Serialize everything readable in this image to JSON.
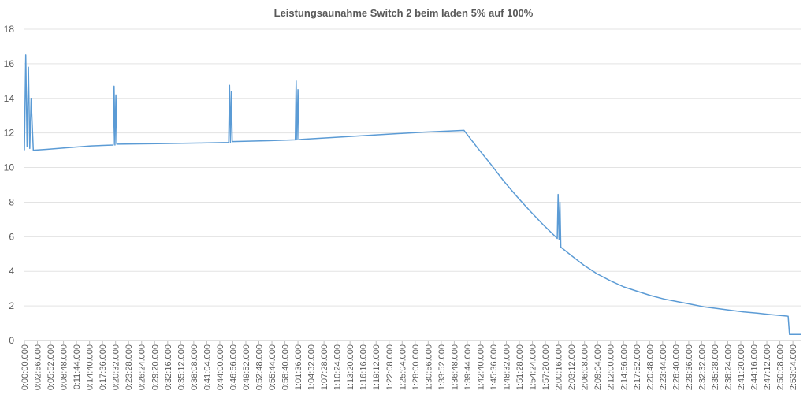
{
  "chart_data": {
    "type": "line",
    "title": "Leistungsaunahme Switch 2 beim laden 5% auf 100%",
    "xlabel": "",
    "ylabel": "",
    "ylim": [
      0,
      18
    ],
    "yticks": [
      "0",
      "2",
      "4",
      "6",
      "8",
      "10",
      "12",
      "14",
      "16",
      "18"
    ],
    "grid": true,
    "legend": "none",
    "color": "#5B9BD5",
    "xticks": [
      "0:00:00.000",
      "0:02:56.000",
      "0:05:52.000",
      "0:08:48.000",
      "0:11:44.000",
      "0:14:40.000",
      "0:17:36.000",
      "0:20:32.000",
      "0:23:28.000",
      "0:26:24.000",
      "0:29:20.000",
      "0:32:16.000",
      "0:35:12.000",
      "0:38:08.000",
      "0:41:04.000",
      "0:44:00.000",
      "0:46:56.000",
      "0:49:52.000",
      "0:52:48.000",
      "0:55:44.000",
      "0:58:40.000",
      "1:01:36.000",
      "1:04:32.000",
      "1:07:28.000",
      "1:10:24.000",
      "1:13:20.000",
      "1:16:16.000",
      "1:19:12.000",
      "1:22:08.000",
      "1:25:04.000",
      "1:28:00.000",
      "1:30:56.000",
      "1:33:52.000",
      "1:36:48.000",
      "1:39:44.000",
      "1:42:40.000",
      "1:45:36.000",
      "1:48:32.000",
      "1:51:28.000",
      "1:54:24.000",
      "1:57:20.000",
      "2:00:16.000",
      "2:03:12.000",
      "2:06:08.000",
      "2:09:04.000",
      "2:12:00.000",
      "2:14:56.000",
      "2:17:52.000",
      "2:20:48.000",
      "2:23:44.000",
      "2:26:40.000",
      "2:29:36.000",
      "2:32:32.000",
      "2:35:28.000",
      "2:38:24.000",
      "2:41:20.000",
      "2:44:16.000",
      "2:47:12.000",
      "2:50:08.000",
      "2:53:04.000"
    ],
    "series": [
      {
        "x_minutes": [
          0,
          0.3,
          0.6,
          0.9,
          1.2,
          1.5,
          2,
          5,
          10,
          15,
          20,
          20.2,
          20.4,
          20.6,
          20.8,
          30,
          40,
          46,
          46.2,
          46.4,
          46.6,
          46.8,
          55,
          61,
          61.2,
          61.4,
          61.6,
          61.8,
          70,
          80,
          90,
          99,
          102,
          105,
          108,
          111,
          114,
          117,
          120,
          120.2,
          120.4,
          120.6,
          120.8,
          123,
          126,
          129,
          132,
          135,
          138,
          141,
          144,
          147,
          150,
          153,
          156,
          159,
          162,
          165,
          168,
          171,
          172,
          172.3,
          175
        ],
        "y": [
          11.0,
          16.5,
          11.2,
          15.8,
          11.1,
          14.0,
          11.0,
          11.05,
          11.15,
          11.25,
          11.3,
          14.7,
          11.3,
          14.2,
          11.35,
          11.38,
          11.42,
          11.45,
          14.75,
          11.45,
          14.4,
          11.5,
          11.55,
          11.6,
          15.0,
          11.6,
          14.5,
          11.62,
          11.75,
          11.9,
          12.05,
          12.15,
          11.15,
          10.2,
          9.2,
          8.3,
          7.45,
          6.65,
          5.9,
          8.45,
          5.85,
          8.0,
          5.4,
          4.95,
          4.35,
          3.85,
          3.45,
          3.1,
          2.85,
          2.6,
          2.4,
          2.25,
          2.1,
          1.95,
          1.85,
          1.75,
          1.65,
          1.58,
          1.5,
          1.43,
          1.4,
          0.35,
          0.35
        ]
      }
    ]
  }
}
